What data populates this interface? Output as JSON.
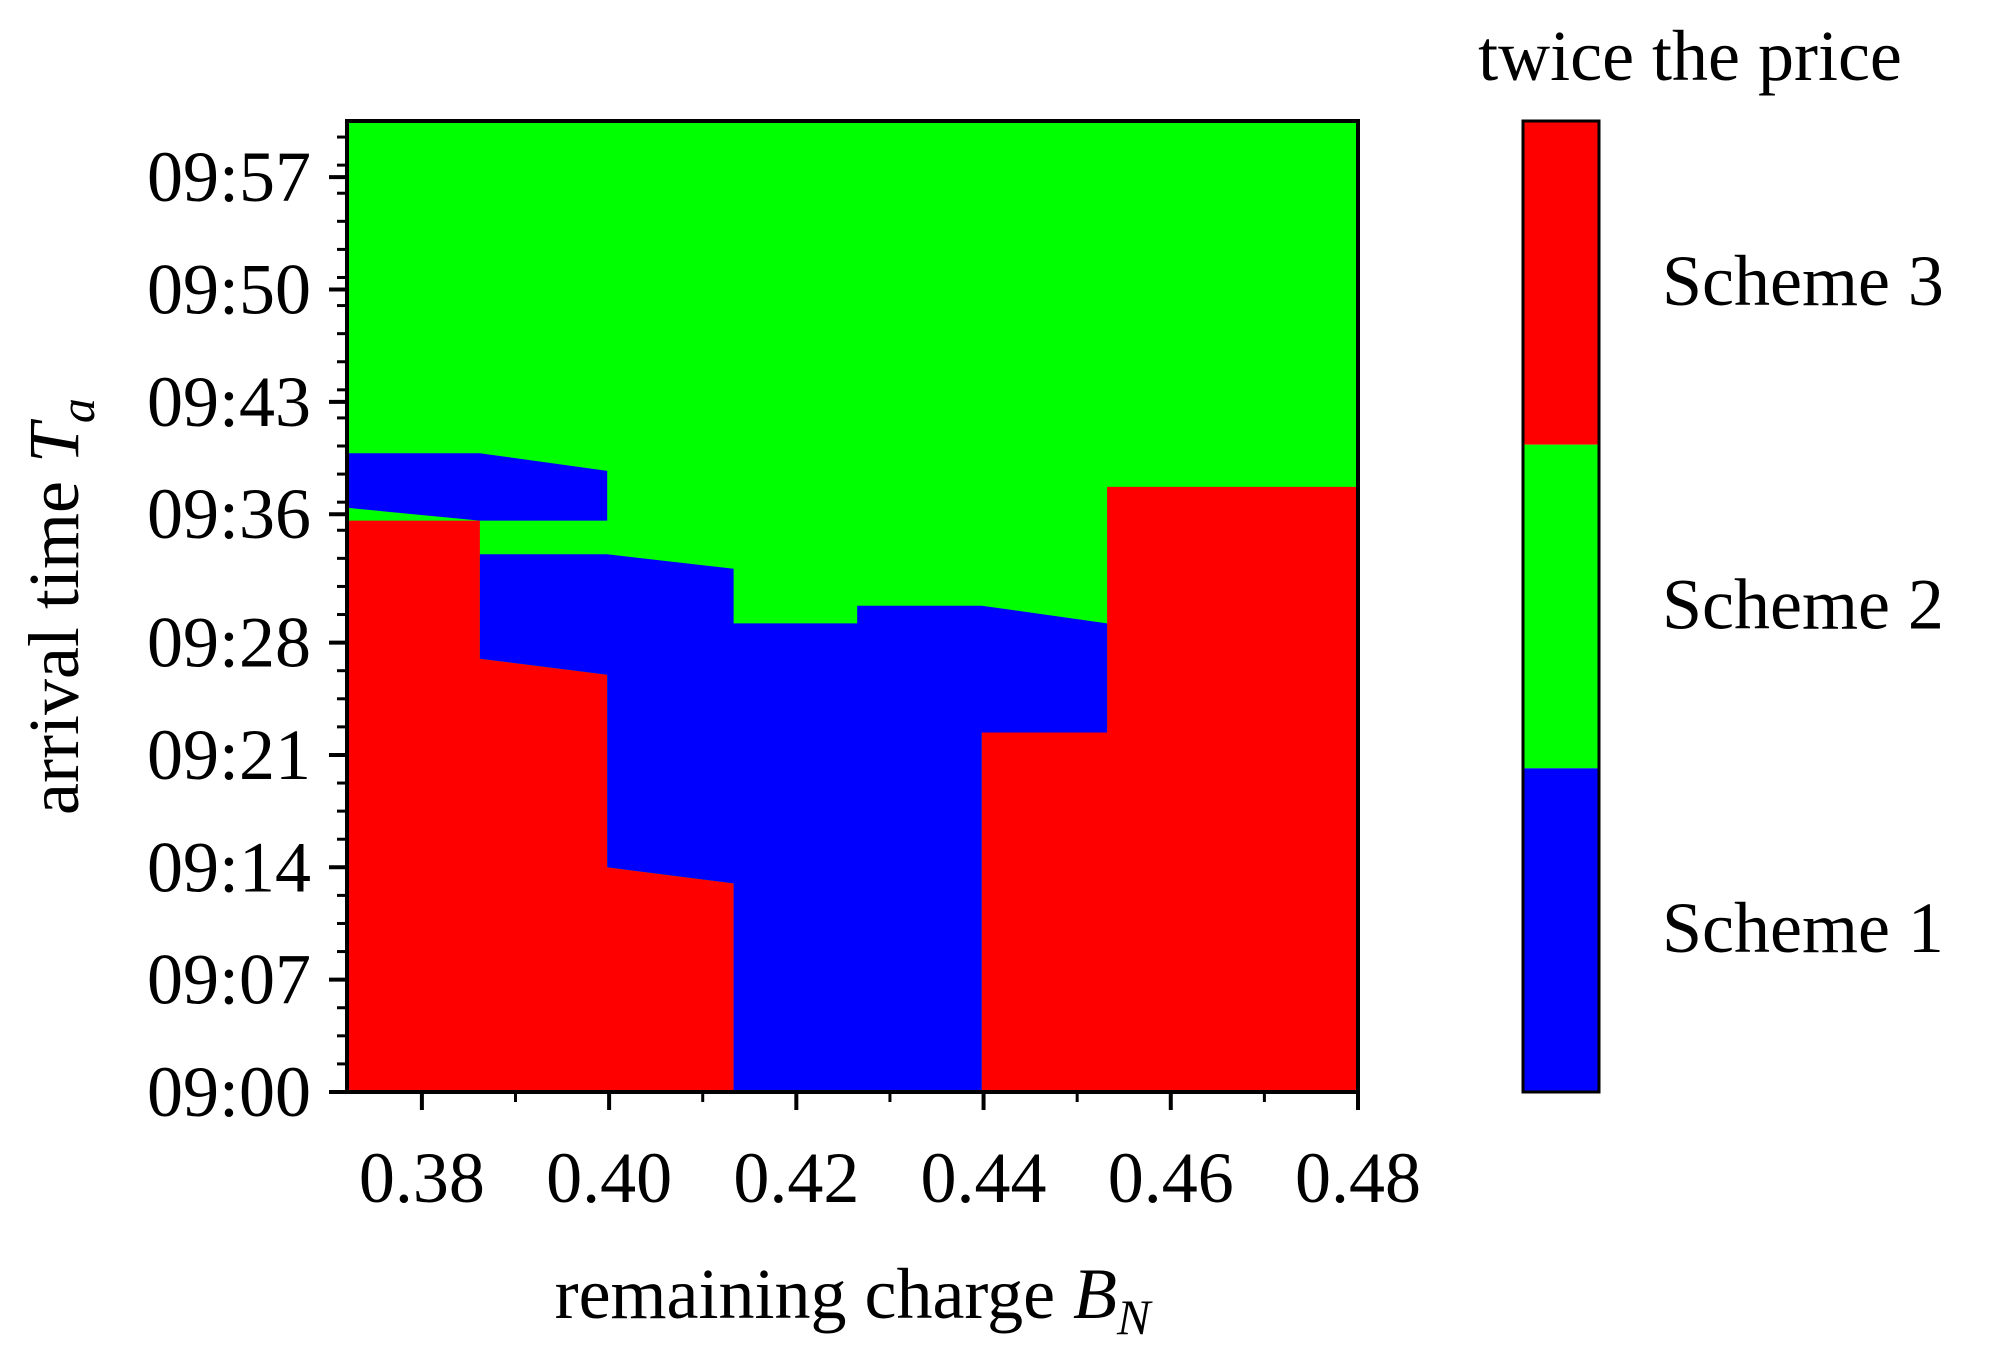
{
  "chart_data": {
    "type": "heatmap",
    "title": "twice the price",
    "xlabel": {
      "text": "remaining charge ",
      "var": "B",
      "sub": "N"
    },
    "ylabel": {
      "text": "arrival time ",
      "var": "T",
      "sub": "a"
    },
    "xlim": [
      0.372,
      0.48
    ],
    "ylim_minutes": [
      0,
      60.5
    ],
    "x_ticks": [
      {
        "value": 0.38,
        "label": "0.38"
      },
      {
        "value": 0.4,
        "label": "0.40"
      },
      {
        "value": 0.42,
        "label": "0.42"
      },
      {
        "value": 0.44,
        "label": "0.44"
      },
      {
        "value": 0.46,
        "label": "0.46"
      },
      {
        "value": 0.48,
        "label": "0.48"
      }
    ],
    "y_ticks": [
      {
        "minutes": 0,
        "label": "09:00"
      },
      {
        "minutes": 7,
        "label": "09:07"
      },
      {
        "minutes": 14,
        "label": "09:14"
      },
      {
        "minutes": 21,
        "label": "09:21"
      },
      {
        "minutes": 28,
        "label": "09:28"
      },
      {
        "minutes": 36,
        "label": "09:36"
      },
      {
        "minutes": 43,
        "label": "09:43"
      },
      {
        "minutes": 50,
        "label": "09:50"
      },
      {
        "minutes": 57,
        "label": "09:57"
      }
    ],
    "y_minor_every_minutes": 1.75,
    "x_minor_every": 0.01,
    "schemes": [
      {
        "id": 1,
        "name": "Scheme 1",
        "color": "#0000ff"
      },
      {
        "id": 2,
        "name": "Scheme 2",
        "color": "#00ff00"
      },
      {
        "id": 3,
        "name": "Scheme 3",
        "color": "#ff0000"
      }
    ],
    "regions": [
      {
        "scheme": 2,
        "points": [
          [
            0.372,
            0
          ],
          [
            0.48,
            0
          ],
          [
            0.48,
            60.5
          ],
          [
            0.372,
            60.5
          ]
        ]
      },
      {
        "scheme": 3,
        "points": [
          [
            0.372,
            0
          ],
          [
            0.4133,
            0
          ],
          [
            0.4133,
            13
          ],
          [
            0.3998,
            14
          ],
          [
            0.3998,
            26
          ],
          [
            0.3862,
            27
          ],
          [
            0.3862,
            35.6
          ],
          [
            0.372,
            35.6
          ]
        ]
      },
      {
        "scheme": 3,
        "points": [
          [
            0.4398,
            0
          ],
          [
            0.48,
            0
          ],
          [
            0.48,
            37.7
          ],
          [
            0.4532,
            37.7
          ],
          [
            0.4532,
            22.4
          ],
          [
            0.4398,
            22.4
          ]
        ]
      },
      {
        "scheme": 1,
        "points": [
          [
            0.4133,
            0
          ],
          [
            0.4398,
            0
          ],
          [
            0.4398,
            22.4
          ],
          [
            0.4532,
            22.4
          ],
          [
            0.4532,
            29.2
          ],
          [
            0.4398,
            30.3
          ],
          [
            0.4265,
            30.3
          ],
          [
            0.4265,
            29.2
          ],
          [
            0.4133,
            29.2
          ],
          [
            0.4133,
            13
          ],
          [
            0.3998,
            14
          ],
          [
            0.3998,
            26
          ],
          [
            0.3862,
            27
          ],
          [
            0.3862,
            33.5
          ],
          [
            0.3998,
            33.5
          ],
          [
            0.4133,
            32.6
          ],
          [
            0.4133,
            29.2
          ]
        ]
      },
      {
        "scheme": 1,
        "points": [
          [
            0.372,
            36.4
          ],
          [
            0.3862,
            35.6
          ],
          [
            0.3998,
            35.6
          ],
          [
            0.3998,
            38.7
          ],
          [
            0.3862,
            39.8
          ],
          [
            0.372,
            39.8
          ]
        ]
      }
    ],
    "legend": {
      "placement": "right",
      "order_top_to_bottom": [
        3,
        2,
        1
      ]
    }
  }
}
